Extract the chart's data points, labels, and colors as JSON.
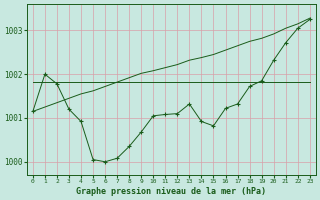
{
  "title": "Graphe pression niveau de la mer (hPa)",
  "bg_color": "#c8e8e0",
  "grid_color": "#d8a0a8",
  "line_color": "#1a5c1a",
  "x": [
    0,
    1,
    2,
    3,
    4,
    5,
    6,
    7,
    8,
    9,
    10,
    11,
    12,
    13,
    14,
    15,
    16,
    17,
    18,
    19,
    20,
    21,
    22,
    23
  ],
  "y_current": [
    1001.15,
    1002.0,
    1001.78,
    1001.2,
    1000.92,
    1000.05,
    1000.0,
    1000.08,
    1000.35,
    1000.68,
    1001.05,
    1001.08,
    1001.1,
    1001.32,
    1000.92,
    1000.82,
    1001.22,
    1001.32,
    1001.72,
    1001.85,
    1002.32,
    1002.72,
    1003.05,
    1003.25
  ],
  "y_flat": [
    1001.82,
    1001.82,
    1001.82,
    1001.82,
    1001.82,
    1001.82,
    1001.82,
    1001.82,
    1001.82,
    1001.82,
    1001.82,
    1001.82,
    1001.82,
    1001.82,
    1001.82,
    1001.82,
    1001.82,
    1001.82,
    1001.82,
    1001.82,
    1001.82,
    1001.82,
    1001.82,
    1001.82
  ],
  "y_diag": [
    1001.15,
    1001.25,
    1001.35,
    1001.45,
    1001.55,
    1001.62,
    1001.72,
    1001.82,
    1001.92,
    1002.02,
    1002.08,
    1002.15,
    1002.22,
    1002.32,
    1002.38,
    1002.45,
    1002.55,
    1002.65,
    1002.75,
    1002.82,
    1002.92,
    1003.05,
    1003.15,
    1003.28
  ],
  "ylim": [
    999.7,
    1003.6
  ],
  "yticks": [
    1000,
    1001,
    1002,
    1003
  ],
  "xlim": [
    -0.5,
    23.5
  ],
  "xticks": [
    0,
    1,
    2,
    3,
    4,
    5,
    6,
    7,
    8,
    9,
    10,
    11,
    12,
    13,
    14,
    15,
    16,
    17,
    18,
    19,
    20,
    21,
    22,
    23
  ]
}
